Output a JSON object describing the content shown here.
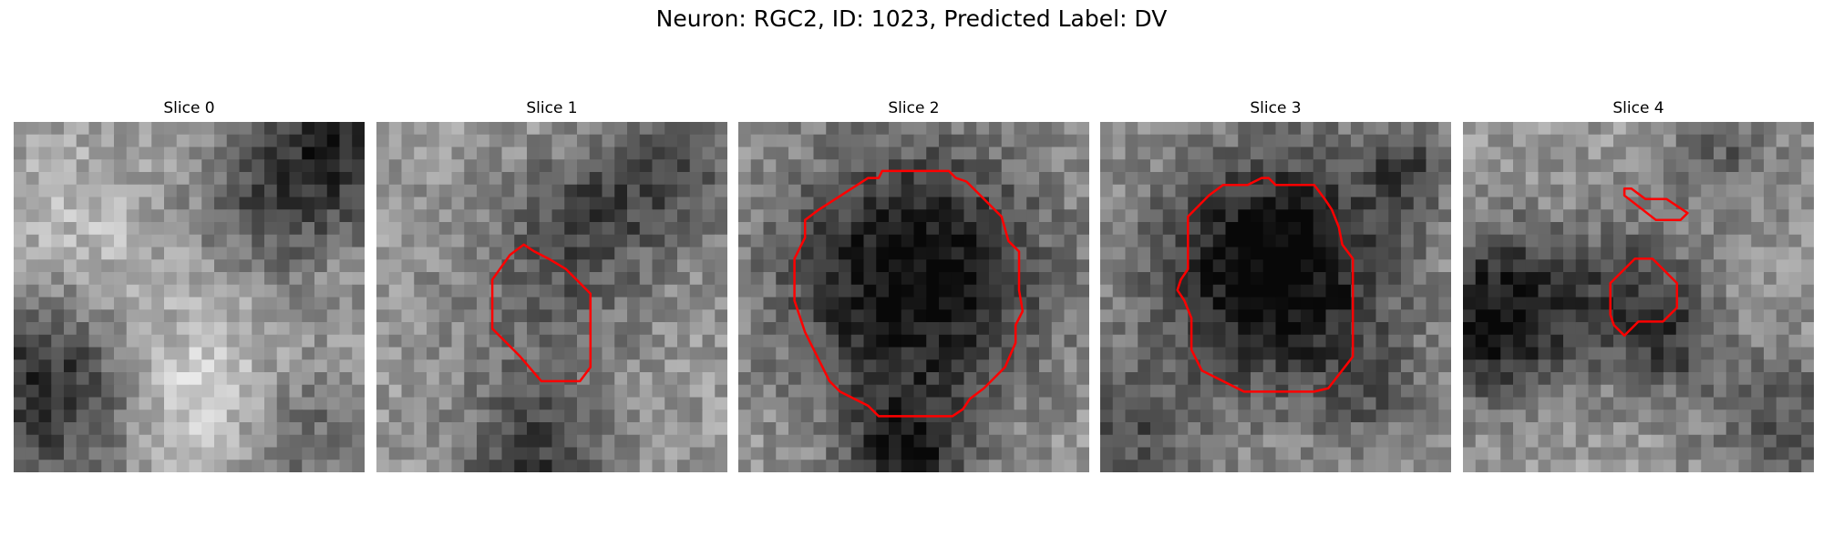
{
  "figure": {
    "title": "Neuron: RGC2, ID: 1023, Predicted Label: DV"
  },
  "chart_data": {
    "type": "heatmap",
    "title": "Neuron: RGC2, ID: 1023, Predicted Label: DV",
    "colormap": "gray",
    "contour_color": "#ff0000",
    "panels": [
      {
        "title": "Slice 0",
        "seed": 11,
        "gauss": [
          [
            0.12,
            0.72,
            0.22,
            -0.55
          ],
          [
            0.92,
            0.08,
            0.16,
            -0.45
          ],
          [
            0.5,
            0.78,
            0.18,
            0.35
          ],
          [
            0.18,
            0.42,
            0.2,
            0.25
          ],
          [
            0.7,
            0.25,
            0.15,
            -0.25
          ],
          [
            0.82,
            0.88,
            0.15,
            -0.25
          ]
        ],
        "contours": []
      },
      {
        "title": "Slice 1",
        "seed": 27,
        "gauss": [
          [
            0.5,
            0.45,
            0.2,
            -0.25
          ],
          [
            0.45,
            0.95,
            0.15,
            -0.4
          ],
          [
            0.85,
            0.15,
            0.15,
            -0.3
          ],
          [
            0.6,
            0.25,
            0.12,
            -0.2
          ]
        ],
        "contours": [
          [
            [
              0.33,
              0.45
            ],
            [
              0.38,
              0.38
            ],
            [
              0.42,
              0.35
            ],
            [
              0.45,
              0.37
            ],
            [
              0.49,
              0.39
            ],
            [
              0.54,
              0.42
            ],
            [
              0.58,
              0.46
            ],
            [
              0.61,
              0.49
            ],
            [
              0.61,
              0.7
            ],
            [
              0.58,
              0.74
            ],
            [
              0.47,
              0.74
            ],
            [
              0.41,
              0.67
            ],
            [
              0.33,
              0.59
            ]
          ]
        ]
      },
      {
        "title": "Slice 2",
        "seed": 43,
        "gauss": [
          [
            0.5,
            0.45,
            0.27,
            -0.65
          ],
          [
            0.48,
            0.95,
            0.12,
            -0.5
          ]
        ],
        "contours": [
          [
            [
              0.37,
              0.16
            ],
            [
              0.4,
              0.16
            ],
            [
              0.41,
              0.14
            ],
            [
              0.6,
              0.14
            ],
            [
              0.62,
              0.16
            ],
            [
              0.65,
              0.17
            ],
            [
              0.75,
              0.27
            ],
            [
              0.77,
              0.34
            ],
            [
              0.8,
              0.37
            ],
            [
              0.8,
              0.48
            ],
            [
              0.81,
              0.54
            ],
            [
              0.79,
              0.58
            ],
            [
              0.79,
              0.63
            ],
            [
              0.76,
              0.7
            ],
            [
              0.7,
              0.76
            ],
            [
              0.66,
              0.79
            ],
            [
              0.64,
              0.82
            ],
            [
              0.61,
              0.84
            ],
            [
              0.4,
              0.84
            ],
            [
              0.37,
              0.81
            ],
            [
              0.29,
              0.77
            ],
            [
              0.26,
              0.74
            ],
            [
              0.22,
              0.66
            ],
            [
              0.19,
              0.6
            ],
            [
              0.16,
              0.51
            ],
            [
              0.16,
              0.39
            ],
            [
              0.19,
              0.33
            ],
            [
              0.19,
              0.28
            ],
            [
              0.23,
              0.25
            ]
          ]
        ]
      },
      {
        "title": "Slice 3",
        "seed": 59,
        "gauss": [
          [
            0.5,
            0.42,
            0.24,
            -0.7
          ],
          [
            0.78,
            0.78,
            0.12,
            -0.2
          ],
          [
            0.08,
            0.9,
            0.15,
            -0.3
          ],
          [
            0.88,
            0.12,
            0.1,
            -0.3
          ]
        ],
        "contours": [
          [
            [
              0.25,
              0.27
            ],
            [
              0.31,
              0.21
            ],
            [
              0.35,
              0.18
            ],
            [
              0.42,
              0.18
            ],
            [
              0.46,
              0.16
            ],
            [
              0.48,
              0.16
            ],
            [
              0.5,
              0.18
            ],
            [
              0.61,
              0.18
            ],
            [
              0.64,
              0.22
            ],
            [
              0.66,
              0.25
            ],
            [
              0.68,
              0.3
            ],
            [
              0.69,
              0.35
            ],
            [
              0.72,
              0.39
            ],
            [
              0.72,
              0.67
            ],
            [
              0.65,
              0.76
            ],
            [
              0.61,
              0.77
            ],
            [
              0.41,
              0.77
            ],
            [
              0.35,
              0.74
            ],
            [
              0.29,
              0.71
            ],
            [
              0.26,
              0.65
            ],
            [
              0.26,
              0.56
            ],
            [
              0.24,
              0.51
            ],
            [
              0.22,
              0.48
            ],
            [
              0.23,
              0.45
            ],
            [
              0.25,
              0.42
            ],
            [
              0.25,
              0.3
            ]
          ]
        ]
      },
      {
        "title": "Slice 4",
        "seed": 71,
        "gauss": [
          [
            0.1,
            0.55,
            0.17,
            -0.6
          ],
          [
            0.5,
            0.5,
            0.15,
            -0.35
          ],
          [
            0.9,
            0.85,
            0.15,
            -0.3
          ],
          [
            0.75,
            0.08,
            0.12,
            -0.25
          ],
          [
            0.6,
            0.65,
            0.1,
            -0.2
          ]
        ],
        "contours": [
          [
            [
              0.46,
              0.19
            ],
            [
              0.48,
              0.19
            ],
            [
              0.52,
              0.22
            ],
            [
              0.58,
              0.22
            ],
            [
              0.64,
              0.26
            ],
            [
              0.62,
              0.28
            ],
            [
              0.55,
              0.28
            ],
            [
              0.46,
              0.21
            ]
          ],
          [
            [
              0.45,
              0.43
            ],
            [
              0.49,
              0.39
            ],
            [
              0.54,
              0.39
            ],
            [
              0.57,
              0.42
            ],
            [
              0.61,
              0.46
            ],
            [
              0.61,
              0.53
            ],
            [
              0.57,
              0.57
            ],
            [
              0.5,
              0.57
            ],
            [
              0.46,
              0.61
            ],
            [
              0.43,
              0.58
            ],
            [
              0.42,
              0.55
            ],
            [
              0.42,
              0.46
            ]
          ]
        ]
      }
    ]
  }
}
